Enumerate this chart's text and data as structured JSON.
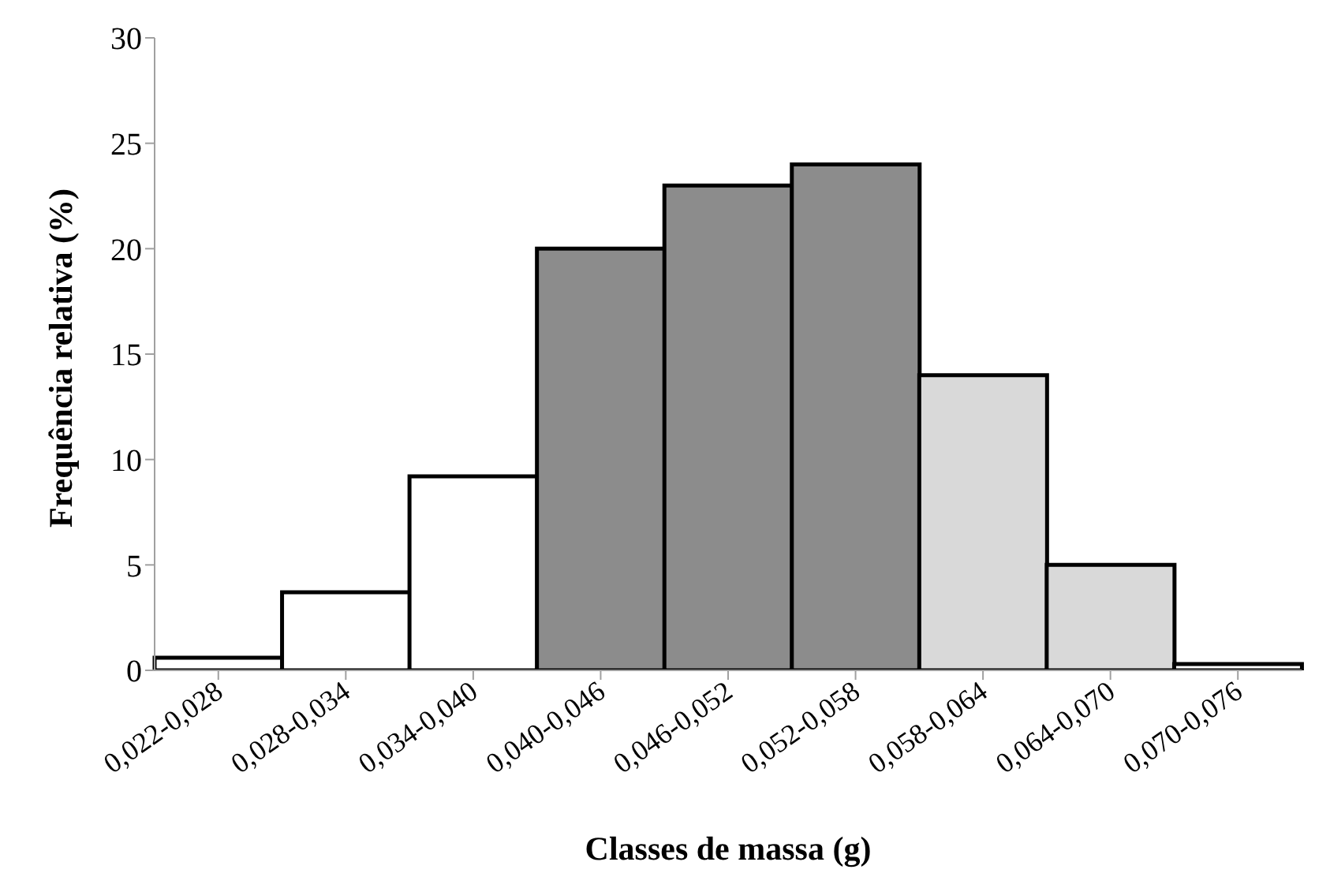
{
  "chart_data": {
    "type": "bar",
    "xlabel": "Classes de massa (g)",
    "ylabel": "Frequência relativa (%)",
    "categories": [
      "0,022-0,028",
      "0,028-0,034",
      "0,034-0,040",
      "0,040-0,046",
      "0,046-0,052",
      "0,052-0,058",
      "0,058-0,064",
      "0,064-0,070",
      "0,070-0,076"
    ],
    "values": [
      0.6,
      3.7,
      9.2,
      20,
      23,
      24,
      14,
      5,
      0.3
    ],
    "colors": [
      "#ffffff",
      "#ffffff",
      "#ffffff",
      "#8c8c8c",
      "#8c8c8c",
      "#8c8c8c",
      "#d9d9d9",
      "#d9d9d9",
      "#ffffff"
    ],
    "ylim": [
      0,
      30
    ],
    "yticks": [
      0,
      5,
      10,
      15,
      20,
      25,
      30
    ],
    "grid": false
  }
}
